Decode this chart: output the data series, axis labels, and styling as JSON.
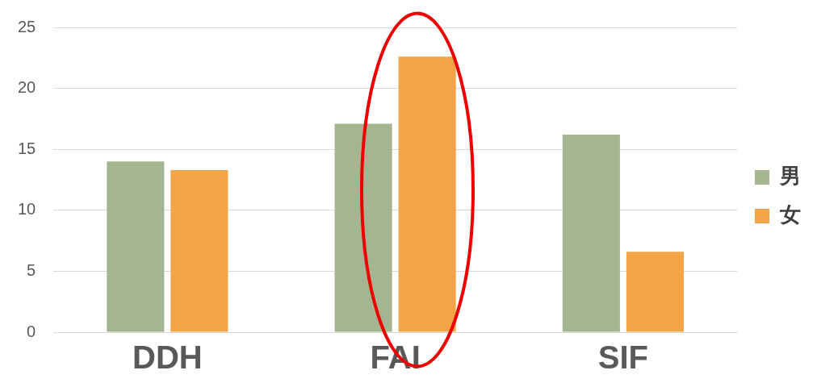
{
  "chart_data": {
    "type": "bar",
    "categories": [
      "DDH",
      "FAI",
      "SIF"
    ],
    "series": [
      {
        "name": "男",
        "color": "#a5b592",
        "values": [
          14.0,
          17.1,
          16.2
        ]
      },
      {
        "name": "女",
        "color": "#f2a446",
        "values": [
          13.3,
          22.6,
          6.6
        ]
      }
    ],
    "ylim": [
      0,
      25
    ],
    "yticks": [
      0,
      5,
      10,
      15,
      20,
      25
    ],
    "grid": "y",
    "legend": "right"
  }
}
